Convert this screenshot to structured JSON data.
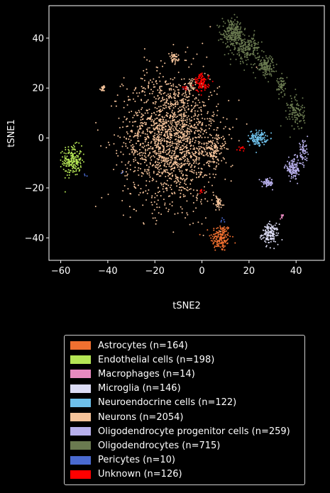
{
  "chart_data": {
    "type": "scatter",
    "xlabel": "tSNE2",
    "ylabel": "tSNE1",
    "xlim": [
      -65,
      52
    ],
    "ylim": [
      -49,
      53
    ],
    "xticks": [
      -60,
      -40,
      -20,
      0,
      20,
      40
    ],
    "yticks": [
      -40,
      -20,
      0,
      20,
      40
    ],
    "legend_position": "below",
    "series": [
      {
        "name": "Astrocytes (n=164)",
        "color": "#f07030",
        "clusters": [
          {
            "cx": 8,
            "cy": -40,
            "sx": 2.2,
            "sy": 2.8,
            "n": 164
          }
        ]
      },
      {
        "name": "Endothelial cells (n=198)",
        "color": "#b5e655",
        "clusters": [
          {
            "cx": -55,
            "cy": -9,
            "sx": 2.0,
            "sy": 3.0,
            "n": 198
          }
        ]
      },
      {
        "name": "Macrophages (n=14)",
        "color": "#e88ac0",
        "clusters": [
          {
            "cx": 34,
            "cy": -31.5,
            "sx": 0.4,
            "sy": 0.5,
            "n": 10
          },
          {
            "cx": -7,
            "cy": 20,
            "sx": 0.5,
            "sy": 0.5,
            "n": 4
          }
        ]
      },
      {
        "name": "Microglia (n=146)",
        "color": "#dcdcf5",
        "clusters": [
          {
            "cx": 29,
            "cy": -38.5,
            "sx": 1.8,
            "sy": 2.0,
            "n": 146
          }
        ]
      },
      {
        "name": "Neuroendocrine cells (n=122)",
        "color": "#6ec0ea",
        "clusters": [
          {
            "cx": 24,
            "cy": 0,
            "sx": 1.8,
            "sy": 1.5,
            "n": 122
          }
        ]
      },
      {
        "name": "Neurons (n=2054)",
        "color": "#f5c39a",
        "clusters": [
          {
            "cx": -13,
            "cy": 0,
            "sx": 10.0,
            "sy": 13.0,
            "n": 1800
          },
          {
            "cx": 5,
            "cy": -5,
            "sx": 2.0,
            "sy": 3.0,
            "n": 120
          },
          {
            "cx": -12,
            "cy": 32,
            "sx": 1.0,
            "sy": 1.0,
            "n": 40
          },
          {
            "cx": -42,
            "cy": 20,
            "sx": 0.6,
            "sy": 0.5,
            "n": 20
          },
          {
            "cx": 7,
            "cy": -26,
            "sx": 1.0,
            "sy": 1.5,
            "n": 50
          },
          {
            "cx": -5,
            "cy": 20,
            "sx": 1.2,
            "sy": 1.2,
            "n": 24
          }
        ]
      },
      {
        "name": "Oligodendrocyte progenitor cells (n=259)",
        "color": "#b8b0ec",
        "clusters": [
          {
            "cx": 39,
            "cy": -12,
            "sx": 1.8,
            "sy": 2.0,
            "n": 130
          },
          {
            "cx": 43,
            "cy": -5,
            "sx": 1.0,
            "sy": 2.0,
            "n": 60
          },
          {
            "cx": 28,
            "cy": -18,
            "sx": 1.2,
            "sy": 0.8,
            "n": 69
          }
        ]
      },
      {
        "name": "Oligodendrocytes (n=715)",
        "color": "#6a7a50",
        "clusters": [
          {
            "cx": 13,
            "cy": 42,
            "sx": 2.2,
            "sy": 2.5,
            "n": 220
          },
          {
            "cx": 19,
            "cy": 36,
            "sx": 2.8,
            "sy": 2.8,
            "n": 200
          },
          {
            "cx": 27,
            "cy": 29,
            "sx": 1.8,
            "sy": 2.0,
            "n": 120
          },
          {
            "cx": 34,
            "cy": 21,
            "sx": 1.0,
            "sy": 2.0,
            "n": 60
          },
          {
            "cx": 40,
            "cy": 10,
            "sx": 1.8,
            "sy": 3.5,
            "n": 115
          }
        ]
      },
      {
        "name": "Pericytes (n=10)",
        "color": "#4a6ad0",
        "clusters": [
          {
            "cx": 9,
            "cy": -32.5,
            "sx": 0.6,
            "sy": 0.6,
            "n": 5
          },
          {
            "cx": -50,
            "cy": -15,
            "sx": 0.6,
            "sy": 0.6,
            "n": 3
          },
          {
            "cx": -34,
            "cy": -14,
            "sx": 0.3,
            "sy": 0.3,
            "n": 2
          }
        ]
      },
      {
        "name": "Unknown (n=126)",
        "color": "#ff0000",
        "clusters": [
          {
            "cx": 0,
            "cy": 22,
            "sx": 1.5,
            "sy": 1.8,
            "n": 100
          },
          {
            "cx": 17,
            "cy": -4,
            "sx": 0.8,
            "sy": 0.6,
            "n": 12
          },
          {
            "cx": 0,
            "cy": -21,
            "sx": 0.6,
            "sy": 0.6,
            "n": 8
          },
          {
            "cx": -7,
            "cy": 20,
            "sx": 0.6,
            "sy": 0.5,
            "n": 6
          }
        ]
      }
    ]
  }
}
